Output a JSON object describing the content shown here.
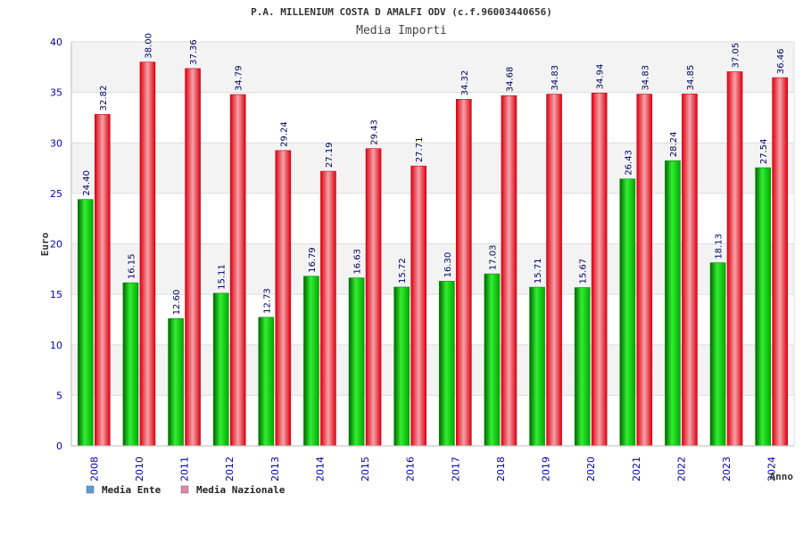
{
  "chart_data": {
    "type": "bar",
    "title": "P.A. MILLENIUM COSTA D AMALFI ODV (c.f.96003440656)",
    "subtitle": "Media Importi",
    "xlabel": "Anno",
    "ylabel": "Euro",
    "ylim": [
      0,
      40
    ],
    "yticks": [
      0,
      5,
      10,
      15,
      20,
      25,
      30,
      35,
      40
    ],
    "grid": true,
    "legend_position": "bottom-left",
    "categories": [
      "2008",
      "2010",
      "2011",
      "2012",
      "2013",
      "2014",
      "2015",
      "2016",
      "2017",
      "2018",
      "2019",
      "2020",
      "2021",
      "2022",
      "2023",
      "2024"
    ],
    "series": [
      {
        "name": "Media Ente",
        "color": "#00bb00",
        "legend_color": "#5b9bd5",
        "values": [
          24.4,
          16.15,
          12.6,
          15.11,
          12.73,
          16.79,
          16.63,
          15.72,
          16.3,
          17.03,
          15.71,
          15.67,
          26.43,
          28.24,
          18.13,
          27.54
        ],
        "labels": [
          "24.40",
          "16.15",
          "12.60",
          "15.11",
          "12.73",
          "16.79",
          "16.63",
          "15.72",
          "16.30",
          "17.03",
          "15.71",
          "15.67",
          "26.43",
          "28.24",
          "18.13",
          "27.54"
        ]
      },
      {
        "name": "Media Nazionale",
        "color": "#ee1122",
        "legend_color": "#dd88aa",
        "values": [
          32.82,
          38.0,
          37.36,
          34.79,
          29.24,
          27.19,
          29.43,
          27.71,
          34.32,
          34.68,
          34.83,
          34.94,
          34.83,
          34.85,
          37.05,
          36.46
        ],
        "labels": [
          "32.82",
          "38.00",
          "37.36",
          "34.79",
          "29.24",
          "27.19",
          "29.43",
          "27.71",
          "34.32",
          "34.68",
          "34.83",
          "34.94",
          "34.83",
          "34.85",
          "37.05",
          "36.46"
        ]
      }
    ]
  }
}
